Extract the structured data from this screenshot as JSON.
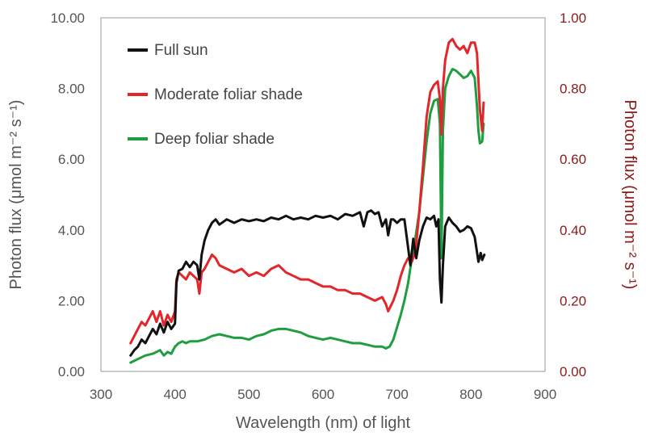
{
  "chart_data": {
    "type": "line",
    "xlabel": "Wavelength (nm) of light",
    "ylabel": "Photon flux (μmol m⁻² s⁻¹)",
    "y2label": "Photon flux (μmol m⁻² s⁻¹)",
    "xlim": [
      300,
      900
    ],
    "ylim": [
      0,
      10
    ],
    "y2lim": [
      0,
      1
    ],
    "xticks": [
      "300",
      "400",
      "500",
      "600",
      "700",
      "800",
      "900"
    ],
    "yticks": [
      "0.00",
      "2.00",
      "4.00",
      "6.00",
      "8.00",
      "10.00"
    ],
    "y2ticks": [
      "0.00",
      "0.20",
      "0.40",
      "0.60",
      "0.80",
      "1.00"
    ],
    "legend_position": "top-left",
    "series": [
      {
        "name": "Full sun",
        "axis": "left",
        "color": "#111111",
        "x": [
          340,
          345,
          350,
          355,
          360,
          365,
          370,
          375,
          380,
          385,
          390,
          395,
          400,
          402,
          405,
          410,
          415,
          420,
          425,
          430,
          433,
          436,
          440,
          445,
          450,
          455,
          460,
          470,
          480,
          490,
          500,
          510,
          520,
          530,
          540,
          550,
          560,
          570,
          580,
          590,
          600,
          610,
          620,
          630,
          640,
          650,
          655,
          660,
          665,
          670,
          675,
          680,
          685,
          688,
          692,
          695,
          700,
          705,
          710,
          715,
          718,
          722,
          726,
          730,
          735,
          740,
          745,
          750,
          753,
          756,
          758,
          760,
          762,
          765,
          770,
          775,
          780,
          785,
          790,
          795,
          800,
          805,
          810,
          813,
          815,
          818
        ],
        "y": [
          0.45,
          0.6,
          0.7,
          0.9,
          0.8,
          1.0,
          1.2,
          1.05,
          1.35,
          1.1,
          1.4,
          1.2,
          1.35,
          2.5,
          2.85,
          2.9,
          3.1,
          2.95,
          3.1,
          3.0,
          2.6,
          3.3,
          3.7,
          4.0,
          4.2,
          4.3,
          4.15,
          4.3,
          4.2,
          4.3,
          4.25,
          4.3,
          4.25,
          4.35,
          4.3,
          4.4,
          4.3,
          4.35,
          4.3,
          4.4,
          4.35,
          4.4,
          4.3,
          4.45,
          4.4,
          4.5,
          4.1,
          4.5,
          4.55,
          4.45,
          4.5,
          4.1,
          4.3,
          3.85,
          4.3,
          4.3,
          4.2,
          4.3,
          4.3,
          3.5,
          3.0,
          3.75,
          3.2,
          3.7,
          4.1,
          4.35,
          4.3,
          4.4,
          4.1,
          4.3,
          2.6,
          1.95,
          3.0,
          4.1,
          4.35,
          4.2,
          4.1,
          3.95,
          4.0,
          4.1,
          4.05,
          3.8,
          3.1,
          3.35,
          3.15,
          3.3
        ]
      },
      {
        "name": "Moderate foliar shade",
        "axis": "right",
        "color": "#e3262b",
        "x": [
          340,
          345,
          350,
          355,
          360,
          365,
          370,
          375,
          380,
          385,
          390,
          395,
          400,
          402,
          405,
          410,
          415,
          420,
          425,
          430,
          433,
          436,
          440,
          445,
          450,
          455,
          460,
          470,
          480,
          490,
          500,
          510,
          520,
          530,
          540,
          550,
          560,
          570,
          580,
          590,
          600,
          610,
          620,
          630,
          640,
          650,
          660,
          670,
          680,
          685,
          688,
          695,
          700,
          705,
          710,
          715,
          720,
          725,
          730,
          735,
          740,
          745,
          750,
          755,
          758,
          760,
          762,
          765,
          770,
          775,
          780,
          785,
          790,
          795,
          800,
          805,
          808,
          810,
          812,
          815,
          817
        ],
        "y": [
          0.08,
          0.1,
          0.12,
          0.14,
          0.13,
          0.15,
          0.17,
          0.14,
          0.17,
          0.13,
          0.16,
          0.14,
          0.17,
          0.26,
          0.28,
          0.27,
          0.26,
          0.28,
          0.27,
          0.26,
          0.22,
          0.28,
          0.29,
          0.31,
          0.33,
          0.32,
          0.3,
          0.29,
          0.28,
          0.29,
          0.27,
          0.28,
          0.27,
          0.29,
          0.3,
          0.28,
          0.27,
          0.26,
          0.26,
          0.25,
          0.24,
          0.24,
          0.23,
          0.23,
          0.22,
          0.22,
          0.21,
          0.2,
          0.21,
          0.19,
          0.17,
          0.2,
          0.23,
          0.27,
          0.3,
          0.32,
          0.31,
          0.34,
          0.45,
          0.58,
          0.72,
          0.79,
          0.81,
          0.82,
          0.77,
          0.67,
          0.8,
          0.88,
          0.93,
          0.94,
          0.92,
          0.91,
          0.92,
          0.9,
          0.93,
          0.93,
          0.9,
          0.82,
          0.74,
          0.68,
          0.76
        ]
      },
      {
        "name": "Deep foliar shade",
        "axis": "left",
        "color": "#1e9e3e",
        "x": [
          340,
          345,
          350,
          360,
          370,
          380,
          385,
          390,
          395,
          400,
          405,
          410,
          415,
          420,
          430,
          440,
          450,
          460,
          470,
          480,
          490,
          500,
          510,
          520,
          530,
          540,
          550,
          560,
          570,
          580,
          590,
          600,
          610,
          620,
          630,
          640,
          650,
          660,
          670,
          680,
          685,
          690,
          695,
          700,
          705,
          710,
          715,
          720,
          725,
          730,
          735,
          740,
          745,
          750,
          755,
          758,
          760,
          762,
          765,
          770,
          775,
          780,
          785,
          790,
          795,
          800,
          805,
          808,
          810,
          812,
          815,
          817
        ],
        "y": [
          0.25,
          0.3,
          0.35,
          0.45,
          0.5,
          0.6,
          0.45,
          0.55,
          0.5,
          0.7,
          0.8,
          0.85,
          0.8,
          0.85,
          0.85,
          0.9,
          1.0,
          1.05,
          1.0,
          0.95,
          0.95,
          0.9,
          1.0,
          1.05,
          1.15,
          1.2,
          1.2,
          1.15,
          1.1,
          1.0,
          0.95,
          0.9,
          0.95,
          0.9,
          0.85,
          0.8,
          0.8,
          0.75,
          0.7,
          0.7,
          0.65,
          0.7,
          0.9,
          1.25,
          1.6,
          2.0,
          2.5,
          3.2,
          3.8,
          4.5,
          5.5,
          6.5,
          7.3,
          7.65,
          7.7,
          7.0,
          3.2,
          6.8,
          8.0,
          8.35,
          8.55,
          8.5,
          8.4,
          8.3,
          8.35,
          8.5,
          8.3,
          7.5,
          6.8,
          6.45,
          6.5,
          7.0
        ]
      }
    ]
  }
}
